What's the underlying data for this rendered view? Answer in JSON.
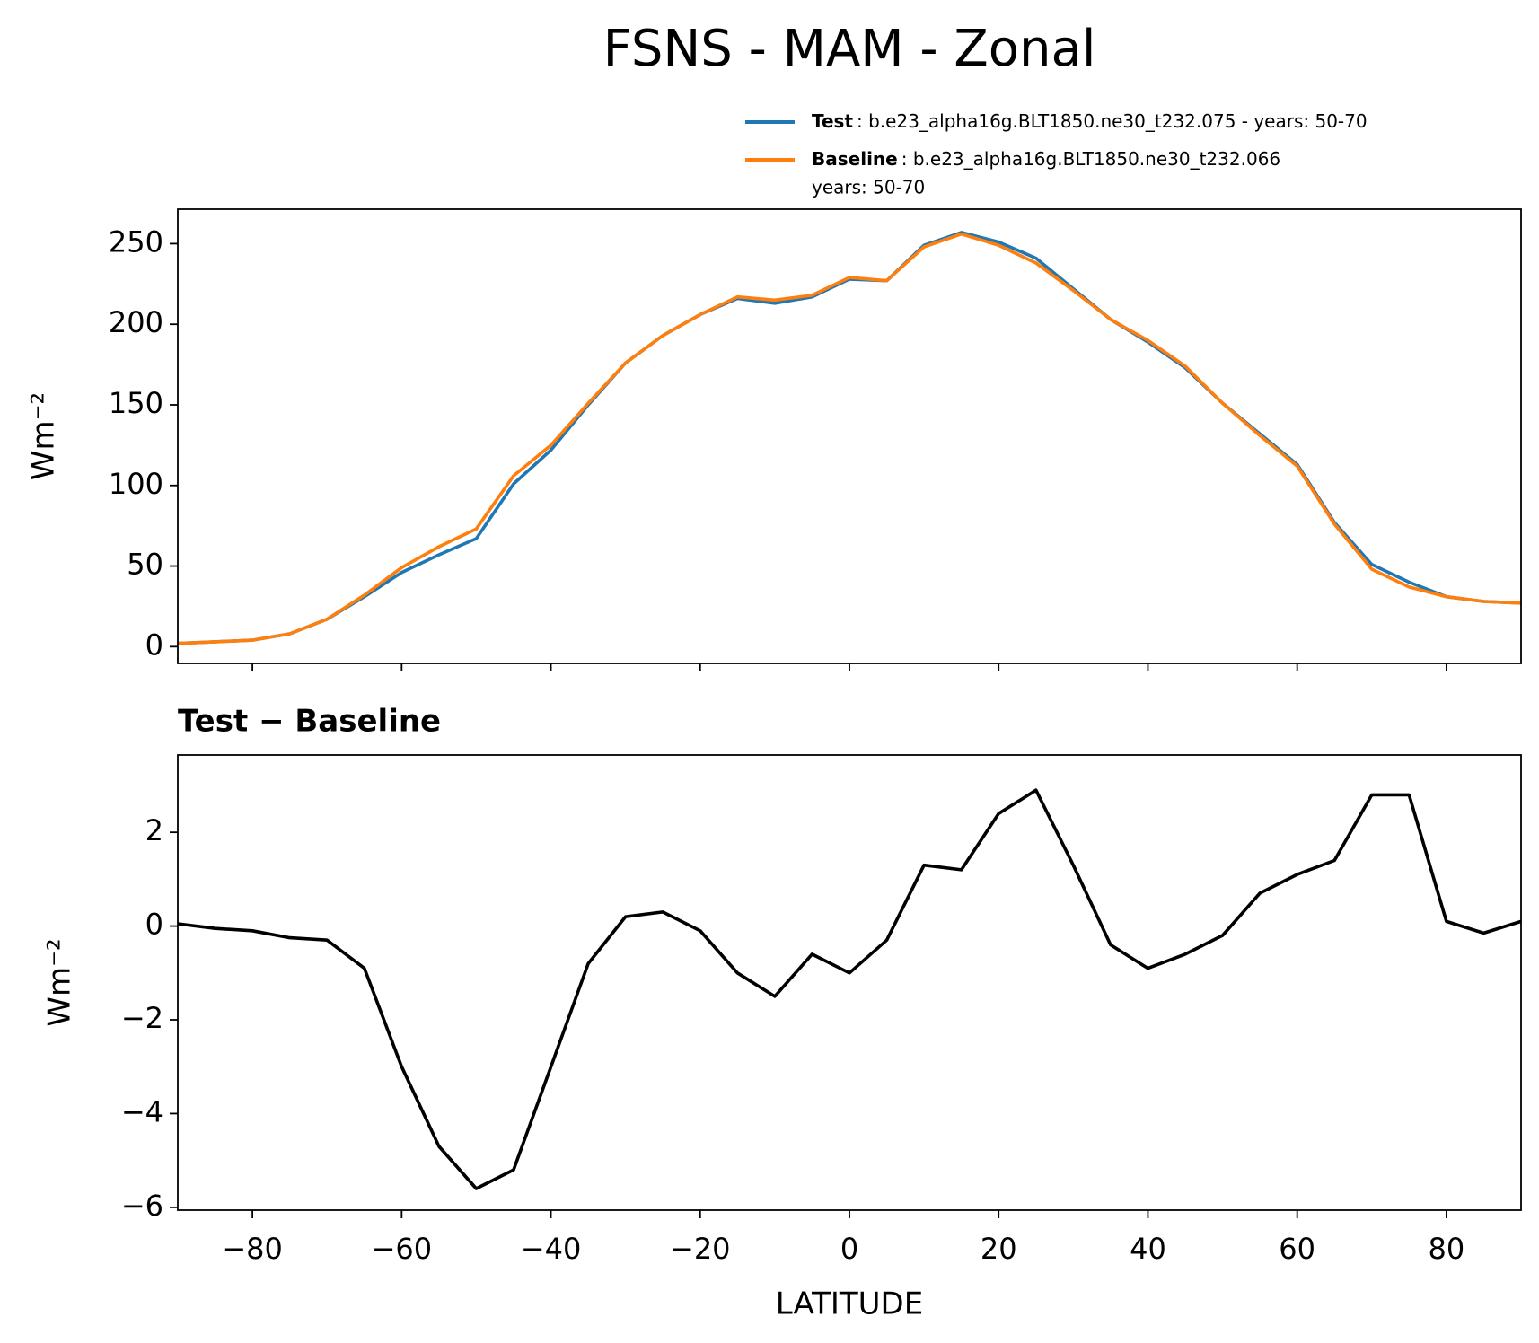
{
  "title": "FSNS - MAM - Zonal",
  "chart_data": [
    {
      "type": "line",
      "ylabel": "Wm⁻²",
      "x": [
        -90,
        -85,
        -80,
        -75,
        -70,
        -65,
        -60,
        -55,
        -50,
        -45,
        -40,
        -35,
        -30,
        -25,
        -20,
        -15,
        -10,
        -5,
        0,
        5,
        10,
        15,
        20,
        25,
        30,
        35,
        40,
        45,
        50,
        55,
        60,
        65,
        70,
        75,
        80,
        85,
        90
      ],
      "series": [
        {
          "name": "Test",
          "label": [
            ": b.e23_alpha16g.BLT1850.ne30_t232.075 - years: 50-70"
          ],
          "color": "#1f77b4",
          "values": [
            2,
            3,
            4,
            8,
            17,
            31,
            46,
            57,
            67,
            101,
            122,
            150,
            176,
            193,
            206,
            216,
            213,
            217,
            228,
            227,
            249,
            257,
            251,
            241,
            222,
            203,
            189,
            173,
            151,
            132,
            113,
            77,
            51,
            40,
            31,
            28,
            27
          ]
        },
        {
          "name": "Baseline",
          "label": [
            ": b.e23_alpha16g.BLT1850.ne30_t232.066",
            "years: 50-70"
          ],
          "color": "#ff7f0e",
          "values": [
            2,
            3,
            4,
            8,
            17,
            32,
            49,
            62,
            73,
            106,
            125,
            151,
            176,
            193,
            206,
            217,
            215,
            218,
            229,
            227,
            248,
            256,
            249,
            238,
            221,
            203,
            190,
            174,
            151,
            131,
            112,
            76,
            48,
            37,
            31,
            28,
            27
          ]
        }
      ],
      "xlim": [
        -90,
        90
      ],
      "ylim": [
        -10.4,
        271.4
      ],
      "yticks": [
        0,
        50,
        100,
        150,
        200,
        250
      ]
    },
    {
      "type": "line",
      "title": "Test − Baseline",
      "ylabel": "Wm⁻²",
      "xlabel": "LATITUDE",
      "x": [
        -90,
        -85,
        -80,
        -75,
        -70,
        -65,
        -60,
        -55,
        -50,
        -45,
        -40,
        -35,
        -30,
        -25,
        -20,
        -15,
        -10,
        -5,
        0,
        5,
        10,
        15,
        20,
        25,
        30,
        35,
        40,
        45,
        50,
        55,
        60,
        65,
        70,
        75,
        80,
        85,
        90
      ],
      "series": [
        {
          "color": "#000000",
          "values": [
            0.05,
            -0.05,
            -0.1,
            -0.25,
            -0.3,
            -0.9,
            -3.0,
            -4.7,
            -5.6,
            -5.2,
            -3.0,
            -0.8,
            0.2,
            0.3,
            -0.1,
            -1.0,
            -1.5,
            -0.6,
            -1.0,
            -0.3,
            1.3,
            1.2,
            2.4,
            2.9,
            1.3,
            -0.4,
            -0.9,
            -0.6,
            -0.2,
            0.7,
            1.1,
            1.4,
            2.8,
            2.8,
            0.1,
            -0.15,
            0.1
          ]
        }
      ],
      "xlim": [
        -90,
        90
      ],
      "ylim": [
        -6.06,
        3.65
      ],
      "xticks": [
        {
          "value": -80,
          "label": "−80"
        },
        {
          "value": -60,
          "label": "−60"
        },
        {
          "value": -40,
          "label": "−40"
        },
        {
          "value": -20,
          "label": "−20"
        },
        0,
        20,
        40,
        60,
        80
      ],
      "yticks": [
        {
          "value": -6,
          "label": "−6"
        },
        {
          "value": -4,
          "label": "−4"
        },
        {
          "value": -2,
          "label": "−2"
        },
        0,
        2
      ]
    }
  ]
}
